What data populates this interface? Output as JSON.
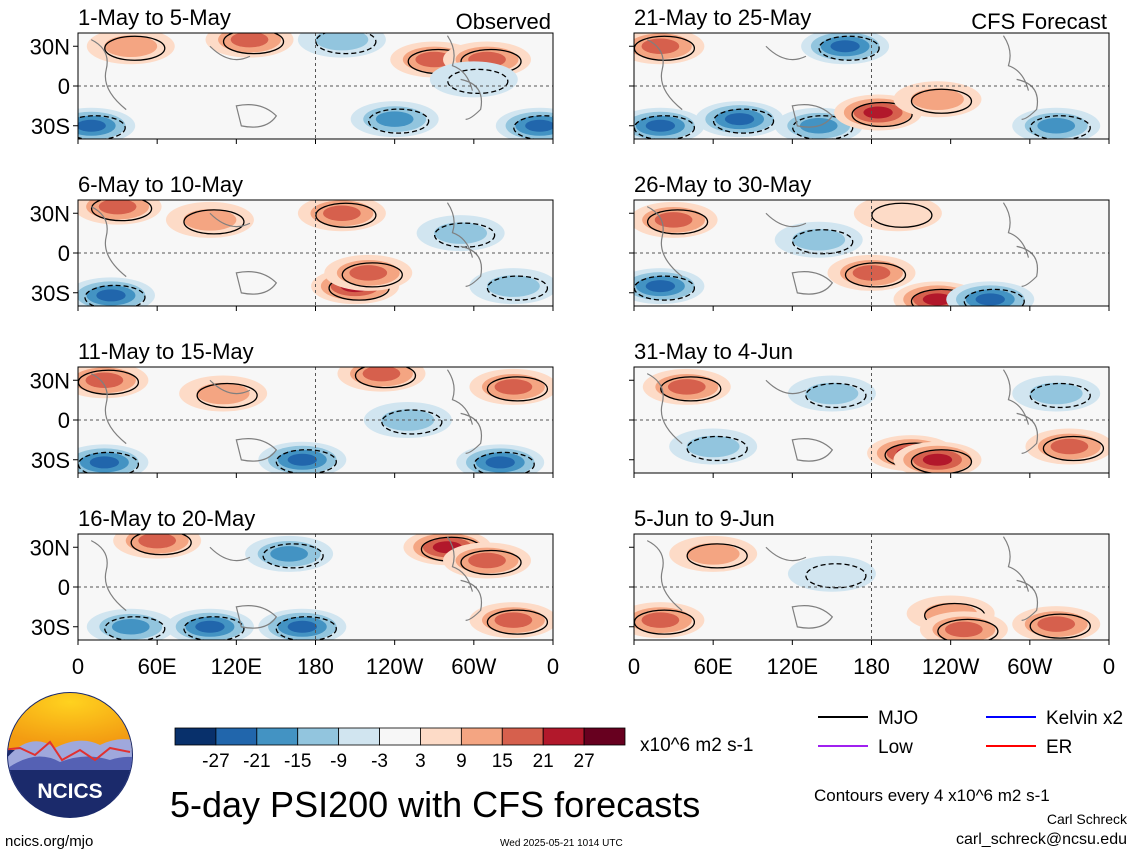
{
  "figure": {
    "title": "5-day PSI200 with CFS forecasts",
    "site": "ncics.org/mjo",
    "timestamp": "Wed 2025-05-21 1014 UTC",
    "author": "Carl Schreck",
    "email": "carl_schreck@ncsu.edu",
    "contour_note": "Contours every 4 x10^6 m2 s-1",
    "logo_text": "NCICS"
  },
  "columns": [
    {
      "label": "Observed"
    },
    {
      "label": "CFS Forecast"
    }
  ],
  "colorbar": {
    "units": "x10^6 m2 s-1",
    "ticks": [
      "-27",
      "-21",
      "-15",
      "-9",
      "-3",
      "3",
      "9",
      "15",
      "21",
      "27"
    ],
    "colors": [
      "#08306b",
      "#2166ac",
      "#4393c3",
      "#92c5de",
      "#d1e5f0",
      "#f7f7f7",
      "#fddbc7",
      "#f4a582",
      "#d6604d",
      "#b2182b",
      "#67001f"
    ]
  },
  "legend": [
    {
      "label": "MJO",
      "color": "#000000"
    },
    {
      "label": "Kelvin x2",
      "color": "#0000ff"
    },
    {
      "label": "Low",
      "color": "#a020f0"
    },
    {
      "label": "ER",
      "color": "#ff0000"
    }
  ],
  "chart_data": {
    "type": "heatmap",
    "xlabel": "",
    "ylabel": "",
    "x_ticks": [
      "0",
      "60E",
      "120E",
      "180",
      "120W",
      "60W",
      "0"
    ],
    "x_range": [
      0,
      360
    ],
    "y_ticks": [
      "30N",
      "0",
      "30S"
    ],
    "y_range": [
      -40,
      40
    ],
    "panels": [
      {
        "title": "1-May to 5-May",
        "column": "Observed",
        "anomalies": [
          {
            "lon": 10,
            "lat": -30,
            "value": -20
          },
          {
            "lon": 40,
            "lat": 30,
            "value": 10
          },
          {
            "lon": 130,
            "lat": 35,
            "value": 15
          },
          {
            "lon": 200,
            "lat": 35,
            "value": -10
          },
          {
            "lon": 270,
            "lat": 20,
            "value": 15
          },
          {
            "lon": 310,
            "lat": 20,
            "value": 15
          },
          {
            "lon": 350,
            "lat": -30,
            "value": -20
          },
          {
            "lon": 240,
            "lat": -25,
            "value": -15
          },
          {
            "lon": 300,
            "lat": 5,
            "value": -5
          }
        ]
      },
      {
        "title": "21-May to 25-May",
        "column": "CFS Forecast",
        "anomalies": [
          {
            "lon": 20,
            "lat": 30,
            "value": 15
          },
          {
            "lon": 20,
            "lat": -30,
            "value": -20
          },
          {
            "lon": 80,
            "lat": -25,
            "value": -20
          },
          {
            "lon": 140,
            "lat": -30,
            "value": -15
          },
          {
            "lon": 160,
            "lat": 30,
            "value": -20
          },
          {
            "lon": 185,
            "lat": -20,
            "value": 25
          },
          {
            "lon": 230,
            "lat": -10,
            "value": 10
          },
          {
            "lon": 320,
            "lat": -30,
            "value": -15
          }
        ]
      },
      {
        "title": "6-May to 10-May",
        "column": "Observed",
        "anomalies": [
          {
            "lon": 30,
            "lat": 35,
            "value": 15
          },
          {
            "lon": 25,
            "lat": -32,
            "value": -25
          },
          {
            "lon": 100,
            "lat": 25,
            "value": 10
          },
          {
            "lon": 200,
            "lat": 30,
            "value": 15
          },
          {
            "lon": 210,
            "lat": -25,
            "value": 20
          },
          {
            "lon": 220,
            "lat": -15,
            "value": 15
          },
          {
            "lon": 290,
            "lat": 15,
            "value": -10
          },
          {
            "lon": 330,
            "lat": -25,
            "value": -10
          }
        ]
      },
      {
        "title": "26-May to 30-May",
        "column": "CFS Forecast",
        "anomalies": [
          {
            "lon": 30,
            "lat": 25,
            "value": 15
          },
          {
            "lon": 20,
            "lat": -25,
            "value": -25
          },
          {
            "lon": 140,
            "lat": 10,
            "value": -10
          },
          {
            "lon": 180,
            "lat": -15,
            "value": 15
          },
          {
            "lon": 230,
            "lat": -35,
            "value": 25
          },
          {
            "lon": 270,
            "lat": -35,
            "value": -20
          },
          {
            "lon": 200,
            "lat": 30,
            "value": 5
          }
        ]
      },
      {
        "title": "11-May to 15-May",
        "column": "Observed",
        "anomalies": [
          {
            "lon": 20,
            "lat": 30,
            "value": 15
          },
          {
            "lon": 20,
            "lat": -32,
            "value": -20
          },
          {
            "lon": 110,
            "lat": 20,
            "value": 10
          },
          {
            "lon": 170,
            "lat": -30,
            "value": -20
          },
          {
            "lon": 230,
            "lat": 35,
            "value": 15
          },
          {
            "lon": 250,
            "lat": 0,
            "value": -10
          },
          {
            "lon": 330,
            "lat": 25,
            "value": 15
          },
          {
            "lon": 320,
            "lat": -32,
            "value": -20
          }
        ]
      },
      {
        "title": "31-May to 4-Jun",
        "column": "CFS Forecast",
        "anomalies": [
          {
            "lon": 40,
            "lat": 25,
            "value": 15
          },
          {
            "lon": 60,
            "lat": -20,
            "value": -10
          },
          {
            "lon": 150,
            "lat": 20,
            "value": -10
          },
          {
            "lon": 210,
            "lat": -25,
            "value": 20
          },
          {
            "lon": 230,
            "lat": -30,
            "value": 25
          },
          {
            "lon": 330,
            "lat": -20,
            "value": 15
          },
          {
            "lon": 320,
            "lat": 20,
            "value": -10
          }
        ]
      },
      {
        "title": "16-May to 20-May",
        "column": "Observed",
        "anomalies": [
          {
            "lon": 60,
            "lat": 35,
            "value": 15
          },
          {
            "lon": 40,
            "lat": -30,
            "value": -15
          },
          {
            "lon": 100,
            "lat": -30,
            "value": -20
          },
          {
            "lon": 170,
            "lat": -30,
            "value": -20
          },
          {
            "lon": 160,
            "lat": 25,
            "value": -15
          },
          {
            "lon": 280,
            "lat": 30,
            "value": 25
          },
          {
            "lon": 310,
            "lat": 20,
            "value": 15
          },
          {
            "lon": 330,
            "lat": -25,
            "value": 15
          }
        ]
      },
      {
        "title": "5-Jun to 9-Jun",
        "column": "CFS Forecast",
        "anomalies": [
          {
            "lon": 20,
            "lat": -25,
            "value": 15
          },
          {
            "lon": 60,
            "lat": 25,
            "value": 10
          },
          {
            "lon": 240,
            "lat": -20,
            "value": 10
          },
          {
            "lon": 250,
            "lat": -32,
            "value": 15
          },
          {
            "lon": 320,
            "lat": -28,
            "value": 15
          },
          {
            "lon": 150,
            "lat": 10,
            "value": -5
          }
        ]
      }
    ]
  }
}
